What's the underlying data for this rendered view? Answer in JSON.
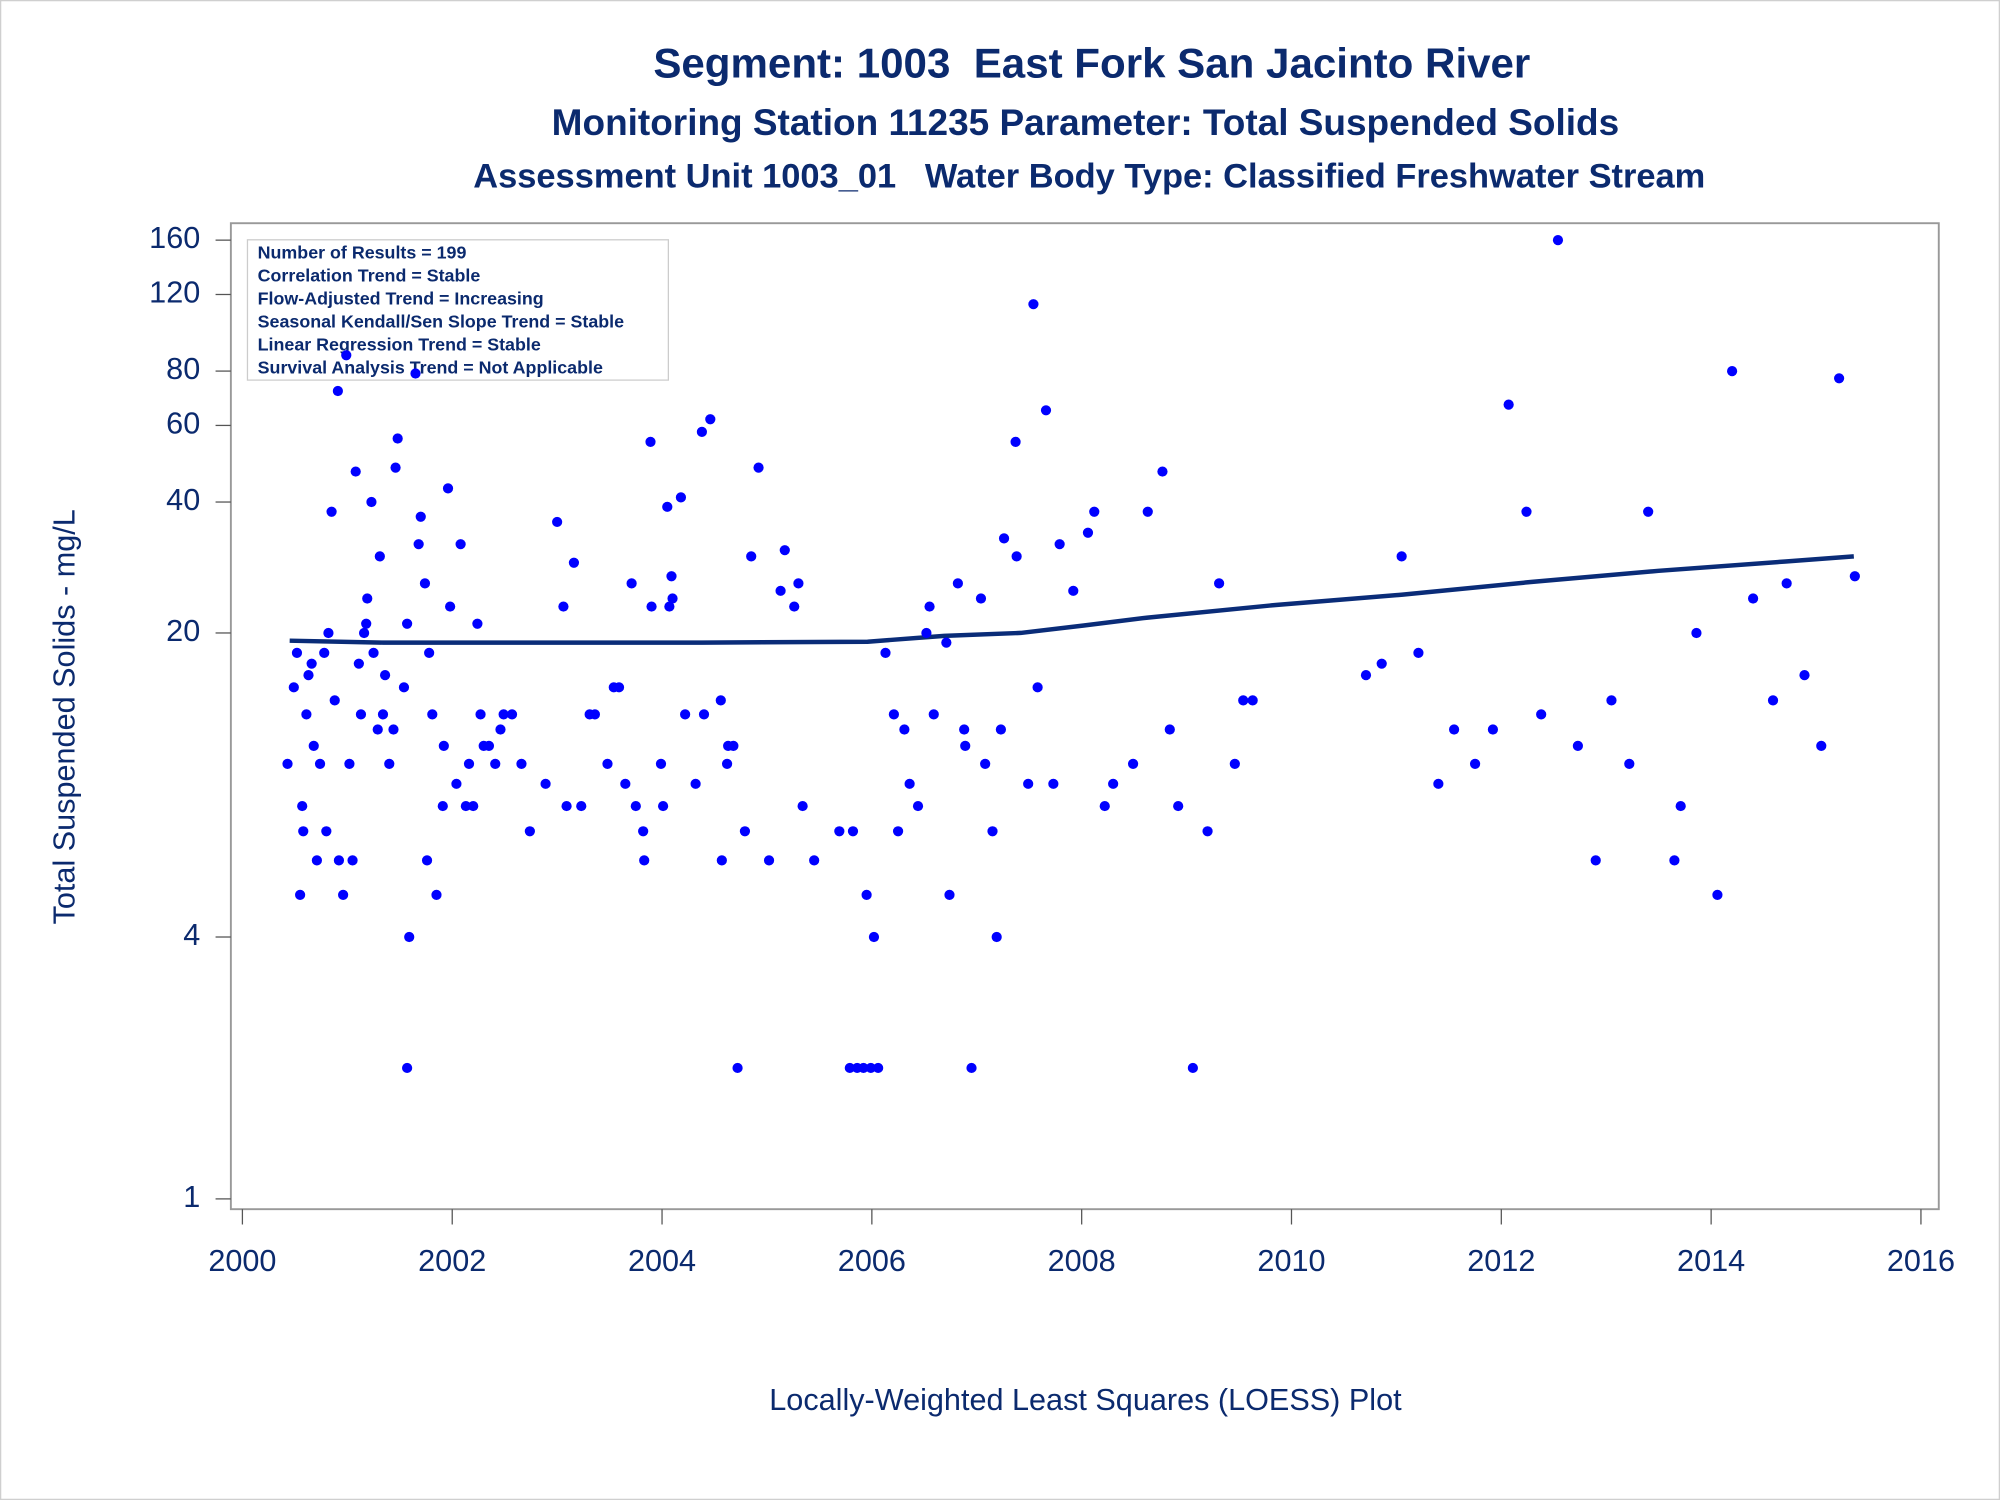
{
  "chart_data": {
    "type": "scatter",
    "title": "Segment: 1003  East Fork San Jacinto River",
    "subtitles": [
      "Monitoring Station 11235 Parameter: Total Suspended Solids",
      "Assessment Unit 1003_01   Water Body Type: Classified Freshwater Stream"
    ],
    "y_label": "Total Suspended Solids - mg/L",
    "footnote": "Locally-Weighted Least Squares (LOESS) Plot",
    "annotations": [
      "Number of Results = 199",
      "Correlation Trend = Stable",
      "Flow-Adjusted Trend = Increasing",
      "Seasonal Kendall/Sen Slope Trend = Stable",
      "Linear Regression Trend = Stable",
      "Survival Analysis Trend = Not Applicable"
    ],
    "log_y": true,
    "xlim": [
      1999.89,
      2016.17
    ],
    "ylim": [
      0.947,
      175
    ],
    "xticks": [
      2000,
      2002,
      2004,
      2006,
      2008,
      2010,
      2012,
      2014,
      2016
    ],
    "yticks": [
      1,
      4,
      20,
      40,
      60,
      80,
      120,
      160
    ],
    "color": "#0000ff",
    "x": [
      2000.43,
      2000.49,
      2000.52,
      2000.55,
      2000.57,
      2000.58,
      2000.61,
      2000.63,
      2000.66,
      2000.68,
      2000.71,
      2000.74,
      2000.78,
      2000.8,
      2000.82,
      2000.85,
      2000.88,
      2000.91,
      2000.92,
      2000.96,
      2000.99,
      2001.02,
      2001.05,
      2001.08,
      2001.11,
      2001.13,
      2001.16,
      2001.18,
      2001.19,
      2001.23,
      2001.25,
      2001.29,
      2001.31,
      2001.34,
      2001.36,
      2001.4,
      2001.44,
      2001.46,
      2001.48,
      2001.54,
      2001.57,
      2001.57,
      2001.59,
      2001.65,
      2001.68,
      2001.7,
      2001.74,
      2001.76,
      2001.78,
      2001.81,
      2001.85,
      2001.91,
      2001.92,
      2001.96,
      2001.98,
      2002.04,
      2002.08,
      2002.13,
      2002.16,
      2002.2,
      2002.24,
      2002.27,
      2002.3,
      2002.35,
      2002.41,
      2002.46,
      2002.49,
      2002.57,
      2002.66,
      2002.74,
      2002.89,
      2003.0,
      2003.06,
      2003.09,
      2003.16,
      2003.23,
      2003.31,
      2003.36,
      2003.48,
      2003.54,
      2003.59,
      2003.65,
      2003.71,
      2003.75,
      2003.82,
      2003.83,
      2003.89,
      2003.9,
      2003.99,
      2004.01,
      2004.05,
      2004.07,
      2004.09,
      2004.1,
      2004.18,
      2004.22,
      2004.32,
      2004.38,
      2004.4,
      2004.46,
      2004.56,
      2004.57,
      2004.62,
      2004.63,
      2004.68,
      2004.72,
      2004.79,
      2004.85,
      2004.92,
      2005.02,
      2005.13,
      2005.17,
      2005.26,
      2005.3,
      2005.34,
      2005.45,
      2005.69,
      2005.79,
      2005.82,
      2005.86,
      2005.92,
      2005.95,
      2005.99,
      2006.02,
      2006.06,
      2006.13,
      2006.21,
      2006.25,
      2006.31,
      2006.36,
      2006.44,
      2006.52,
      2006.55,
      2006.59,
      2006.71,
      2006.74,
      2006.82,
      2006.88,
      2006.89,
      2006.95,
      2007.04,
      2007.08,
      2007.15,
      2007.19,
      2007.23,
      2007.26,
      2007.37,
      2007.38,
      2007.49,
      2007.54,
      2007.58,
      2007.66,
      2007.73,
      2007.79,
      2007.92,
      2008.06,
      2008.12,
      2008.22,
      2008.3,
      2008.49,
      2008.63,
      2008.77,
      2008.84,
      2008.92,
      2009.06,
      2009.2,
      2009.31,
      2009.46,
      2009.54,
      2009.63,
      2010.71,
      2010.86,
      2011.05,
      2011.21,
      2011.4,
      2011.55,
      2011.75,
      2011.92,
      2012.07,
      2012.24,
      2012.38,
      2012.54,
      2012.73,
      2012.9,
      2013.05,
      2013.22,
      2013.4,
      2013.65,
      2013.71,
      2013.86,
      2014.06,
      2014.2,
      2014.4,
      2014.59,
      2014.72,
      2014.89,
      2015.05,
      2015.22,
      2015.37
    ],
    "values": [
      10,
      15,
      18,
      5,
      8,
      7,
      13,
      16,
      17,
      11,
      6,
      10,
      18,
      7,
      20,
      38,
      14,
      72,
      6,
      5,
      87,
      10,
      6,
      47,
      17,
      13,
      20,
      21,
      24,
      40,
      18,
      12,
      30,
      13,
      16,
      10,
      12,
      48,
      56,
      15,
      21,
      2,
      4,
      79,
      32,
      37,
      26,
      6,
      18,
      13,
      5,
      8,
      11,
      43,
      23,
      9,
      32,
      8,
      10,
      8,
      21,
      13,
      11,
      11,
      10,
      12,
      13,
      13,
      10,
      7,
      9,
      36,
      23,
      8,
      29,
      8,
      13,
      13,
      10,
      15,
      15,
      9,
      26,
      8,
      7,
      6,
      55,
      23,
      10,
      8,
      39,
      23,
      27,
      24,
      41,
      13,
      9,
      58,
      13,
      62,
      14,
      6,
      10,
      11,
      11,
      2,
      7,
      30,
      48,
      6,
      25,
      31,
      23,
      26,
      8,
      6,
      7,
      2,
      7,
      2,
      2,
      5,
      2,
      4,
      2,
      18,
      13,
      7,
      12,
      9,
      8,
      20,
      23,
      13,
      19,
      5,
      26,
      12,
      11,
      2,
      24,
      10,
      7,
      4,
      12,
      33,
      55,
      30,
      9,
      114,
      15,
      65,
      9,
      32,
      25,
      34,
      38,
      8,
      9,
      10,
      38,
      47,
      12,
      8,
      2,
      7,
      26,
      10,
      14,
      14,
      16,
      17,
      30,
      18,
      9,
      12,
      10,
      12,
      67,
      38,
      13,
      160,
      11,
      6,
      14,
      10,
      38,
      6,
      8,
      20,
      5,
      80,
      24,
      14,
      26,
      16,
      11,
      77,
      27
    ],
    "line": {
      "color": "#0a2c78",
      "x": [
        2000.45,
        2001.34,
        2004.38,
        2005.96,
        2006.69,
        2007.42,
        2008.02,
        2008.63,
        2009.85,
        2011.06,
        2012.28,
        2013.5,
        2014.71,
        2015.36
      ],
      "values": [
        19.2,
        19,
        19,
        19.1,
        19.7,
        20,
        20.8,
        21.7,
        23.2,
        24.5,
        26.2,
        27.8,
        29.2,
        30
      ]
    }
  }
}
